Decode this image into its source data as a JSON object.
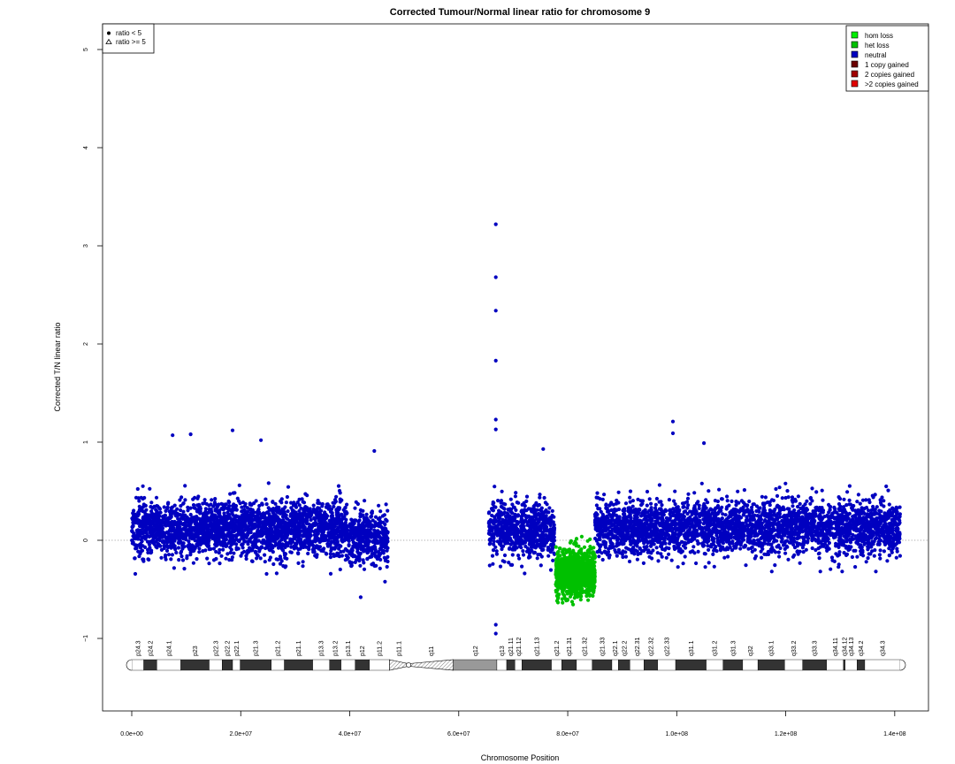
{
  "chart_data": {
    "type": "scatter",
    "title": "Corrected Tumour/Normal linear ratio for chromosome  9",
    "xlabel": "Chromosome Position",
    "ylabel": "Corrected T/N linear ratio",
    "xlim": [
      0,
      141000000
    ],
    "ylim": [
      -1.5,
      5.2
    ],
    "x_ticks": [
      0,
      20000000,
      40000000,
      60000000,
      80000000,
      100000000,
      120000000,
      140000000
    ],
    "x_tick_labels": [
      "0.0e+00",
      "2.0e+07",
      "4.0e+07",
      "6.0e+07",
      "8.0e+07",
      "1.0e+08",
      "1.2e+08",
      "1.4e+08"
    ],
    "y_ticks": [
      -1,
      0,
      1,
      2,
      3,
      4,
      5
    ],
    "y_tick_labels": [
      "−1",
      "0",
      "1",
      "2",
      "3",
      "4",
      "5"
    ],
    "reference_line": {
      "y": 0,
      "style": "dotted"
    },
    "grid": false,
    "colors": {
      "hom_loss": "#00ee00",
      "het_loss": "#00c000",
      "neutral": "#0000c0",
      "one_copy_gained": "#6b0000",
      "two_copies_gained": "#a00000",
      "gt_two_copies_gained": "#e00000"
    },
    "shape_legend": {
      "placement": "top-left",
      "entries": [
        {
          "symbol": "filled-circle",
          "label": "ratio < 5"
        },
        {
          "symbol": "open-triangle",
          "label": "ratio >= 5"
        }
      ]
    },
    "state_legend": {
      "placement": "top-right",
      "entries": [
        {
          "key": "hom_loss",
          "label": "hom loss"
        },
        {
          "key": "het_loss",
          "label": "het loss"
        },
        {
          "key": "neutral",
          "label": "neutral"
        },
        {
          "key": "one_copy_gained",
          "label": "1 copy gained"
        },
        {
          "key": "two_copies_gained",
          "label": "2 copies gained"
        },
        {
          "key": "gt_two_copies_gained",
          "label": ">2 copies gained"
        }
      ]
    },
    "segments": [
      {
        "state": "neutral",
        "start": 0,
        "end": 39500000,
        "center": 0.12,
        "spread": 0.33,
        "density": 2400
      },
      {
        "state": "neutral",
        "start": 39500000,
        "end": 47000000,
        "center": 0.02,
        "spread": 0.34,
        "density": 420
      },
      {
        "state": "neutral",
        "start": 65500000,
        "end": 77600000,
        "center": 0.1,
        "spread": 0.34,
        "density": 700
      },
      {
        "state": "het_loss",
        "start": 77800000,
        "end": 85000000,
        "center": -0.32,
        "spread": 0.27,
        "density": 1100
      },
      {
        "state": "neutral",
        "start": 85000000,
        "end": 141000000,
        "center": 0.13,
        "spread": 0.32,
        "density": 3000
      }
    ],
    "outliers": [
      {
        "x": 66800000,
        "y": 3.22
      },
      {
        "x": 66800000,
        "y": 2.68
      },
      {
        "x": 66800000,
        "y": 2.34
      },
      {
        "x": 66800000,
        "y": 1.83
      },
      {
        "x": 66800000,
        "y": 1.23
      },
      {
        "x": 66800000,
        "y": 1.13
      },
      {
        "x": 66800000,
        "y": -0.95
      },
      {
        "x": 66800000,
        "y": -0.86
      },
      {
        "x": 99300000,
        "y": 1.21
      },
      {
        "x": 99300000,
        "y": 1.09
      },
      {
        "x": 18500000,
        "y": 1.12
      },
      {
        "x": 7500000,
        "y": 1.07
      },
      {
        "x": 10800000,
        "y": 1.08
      },
      {
        "x": 23700000,
        "y": 1.02
      },
      {
        "x": 105000000,
        "y": 0.99
      },
      {
        "x": 44500000,
        "y": 0.91
      },
      {
        "x": 75500000,
        "y": 0.93
      },
      {
        "x": 42000000,
        "y": -0.58
      }
    ],
    "ideogram": {
      "centromere": 50800000,
      "bands": [
        {
          "name": "p24.3",
          "start": 0,
          "end": 2200000,
          "stain": "gneg"
        },
        {
          "name": "p24.2",
          "start": 2200000,
          "end": 4600000,
          "stain": "gpos"
        },
        {
          "name": "p24.1",
          "start": 4600000,
          "end": 9000000,
          "stain": "gneg"
        },
        {
          "name": "p23",
          "start": 9000000,
          "end": 14200000,
          "stain": "gpos"
        },
        {
          "name": "p22.3",
          "start": 14200000,
          "end": 16600000,
          "stain": "gneg"
        },
        {
          "name": "p22.2",
          "start": 16600000,
          "end": 18500000,
          "stain": "gpos"
        },
        {
          "name": "p22.1",
          "start": 18500000,
          "end": 19900000,
          "stain": "gneg"
        },
        {
          "name": "p21.3",
          "start": 19900000,
          "end": 25600000,
          "stain": "gpos"
        },
        {
          "name": "p21.2",
          "start": 25600000,
          "end": 28000000,
          "stain": "gneg"
        },
        {
          "name": "p21.1",
          "start": 28000000,
          "end": 33200000,
          "stain": "gpos"
        },
        {
          "name": "p13.3",
          "start": 33200000,
          "end": 36300000,
          "stain": "gneg"
        },
        {
          "name": "p13.2",
          "start": 36300000,
          "end": 38400000,
          "stain": "gpos"
        },
        {
          "name": "p13.1",
          "start": 38400000,
          "end": 41000000,
          "stain": "gneg"
        },
        {
          "name": "p12",
          "start": 41000000,
          "end": 43600000,
          "stain": "gpos"
        },
        {
          "name": "p11.2",
          "start": 43600000,
          "end": 47300000,
          "stain": "gneg"
        },
        {
          "name": "p11.1",
          "start": 47300000,
          "end": 50700000,
          "stain": "acen"
        },
        {
          "name": "q11",
          "start": 50900000,
          "end": 59000000,
          "stain": "acen"
        },
        {
          "name": "q12",
          "start": 59000000,
          "end": 67000000,
          "stain": "gvar"
        },
        {
          "name": "q13",
          "start": 67000000,
          "end": 68800000,
          "stain": "gneg"
        },
        {
          "name": "q21.11",
          "start": 68800000,
          "end": 70300000,
          "stain": "gpos"
        },
        {
          "name": "q21.12",
          "start": 70300000,
          "end": 71600000,
          "stain": "gneg"
        },
        {
          "name": "q21.13",
          "start": 71600000,
          "end": 77000000,
          "stain": "gpos"
        },
        {
          "name": "q21.2",
          "start": 77000000,
          "end": 78900000,
          "stain": "gneg"
        },
        {
          "name": "q21.31",
          "start": 78900000,
          "end": 81600000,
          "stain": "gpos"
        },
        {
          "name": "q21.32",
          "start": 81600000,
          "end": 84500000,
          "stain": "gneg"
        },
        {
          "name": "q21.33",
          "start": 84500000,
          "end": 88100000,
          "stain": "gpos"
        },
        {
          "name": "q22.1",
          "start": 88100000,
          "end": 89300000,
          "stain": "gneg"
        },
        {
          "name": "q22.2",
          "start": 89300000,
          "end": 91400000,
          "stain": "gpos"
        },
        {
          "name": "q22.31",
          "start": 91400000,
          "end": 94000000,
          "stain": "gneg"
        },
        {
          "name": "q22.32",
          "start": 94000000,
          "end": 96500000,
          "stain": "gpos"
        },
        {
          "name": "q22.33",
          "start": 96500000,
          "end": 99800000,
          "stain": "gneg"
        },
        {
          "name": "q31.1",
          "start": 99800000,
          "end": 105400000,
          "stain": "gpos"
        },
        {
          "name": "q31.2",
          "start": 105400000,
          "end": 108500000,
          "stain": "gneg"
        },
        {
          "name": "q31.3",
          "start": 108500000,
          "end": 112100000,
          "stain": "gpos"
        },
        {
          "name": "q32",
          "start": 112100000,
          "end": 114900000,
          "stain": "gneg"
        },
        {
          "name": "q33.1",
          "start": 114900000,
          "end": 119800000,
          "stain": "gpos"
        },
        {
          "name": "q33.2",
          "start": 119800000,
          "end": 123100000,
          "stain": "gneg"
        },
        {
          "name": "q33.3",
          "start": 123100000,
          "end": 127500000,
          "stain": "gpos"
        },
        {
          "name": "q34.11",
          "start": 127500000,
          "end": 130600000,
          "stain": "gneg"
        },
        {
          "name": "q34.12",
          "start": 130600000,
          "end": 130900000,
          "stain": "gpos"
        },
        {
          "name": "q34.13",
          "start": 130900000,
          "end": 133100000,
          "stain": "gneg"
        },
        {
          "name": "q34.2",
          "start": 133100000,
          "end": 134500000,
          "stain": "gpos"
        },
        {
          "name": "q34.3",
          "start": 134500000,
          "end": 141000000,
          "stain": "gneg"
        }
      ]
    }
  }
}
